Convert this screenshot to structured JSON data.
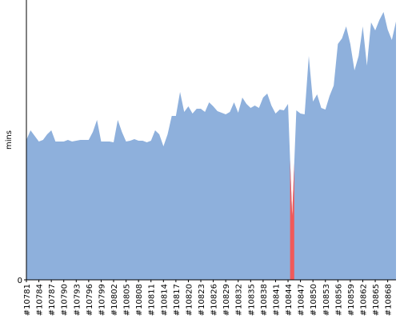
{
  "chart_data": {
    "type": "area",
    "y_label": "mins",
    "categories": [
      "#10781",
      null,
      null,
      "#10784",
      null,
      null,
      "#10787",
      null,
      null,
      "#10790",
      null,
      null,
      "#10793",
      null,
      null,
      "#10796",
      null,
      null,
      "#10799",
      null,
      null,
      "#10802",
      null,
      null,
      "#10805",
      null,
      null,
      "#10808",
      null,
      null,
      "#10811",
      null,
      null,
      "#10814",
      null,
      null,
      "#10817",
      null,
      null,
      "#10820",
      null,
      null,
      "#10823",
      null,
      null,
      "#10826",
      null,
      null,
      "#10829",
      null,
      null,
      "#10832",
      null,
      null,
      "#10835",
      null,
      null,
      "#10838",
      null,
      null,
      "#10841",
      null,
      null,
      "#10844",
      null,
      null,
      "#10847",
      null,
      null,
      "#10850",
      null,
      null,
      "#10853",
      null,
      null,
      "#10856",
      null,
      null,
      "#10859",
      null,
      null,
      "#10862",
      null,
      null,
      "#10865",
      null,
      null,
      "#10868",
      null,
      null
    ],
    "series": [
      {
        "color": "#8eb0dc",
        "values": [
          17.5,
          18.7,
          18,
          17.3,
          17.5,
          18.2,
          18.7,
          17.3,
          17.3,
          17.3,
          17.5,
          17.3,
          17.4,
          17.5,
          17.5,
          17.5,
          18.5,
          20,
          17.3,
          17.3,
          17.3,
          17.2,
          20,
          18.5,
          17.3,
          17.4,
          17.6,
          17.4,
          17.4,
          17.2,
          17.4,
          18.7,
          18.2,
          16.7,
          18.2,
          20.5,
          20.5,
          23.5,
          21,
          21.7,
          20.8,
          21.4,
          21.4,
          21,
          22.2,
          21.7,
          21.1,
          20.9,
          20.7,
          21,
          22.2,
          20.9,
          22.8,
          22,
          21.5,
          21.8,
          21.5,
          22.8,
          23.3,
          21.8,
          20.8,
          21.3,
          21.2,
          22,
          8,
          21.2,
          20.8,
          20.7,
          28,
          22.3,
          23.2,
          21.5,
          21.3,
          23,
          24.3,
          29.5,
          30.2,
          31.7,
          29.5,
          26.2,
          28,
          31.7,
          26.8,
          32.2,
          31.2,
          32.5,
          33.5,
          31.3,
          30,
          32.3
        ]
      },
      {
        "color": "#f05a5a",
        "values": [
          null,
          null,
          null,
          null,
          null,
          null,
          null,
          null,
          null,
          null,
          null,
          null,
          null,
          null,
          null,
          null,
          null,
          null,
          null,
          null,
          null,
          null,
          null,
          null,
          null,
          null,
          null,
          null,
          null,
          null,
          null,
          null,
          null,
          null,
          null,
          null,
          null,
          null,
          null,
          null,
          null,
          null,
          null,
          null,
          null,
          null,
          null,
          null,
          null,
          null,
          null,
          null,
          null,
          null,
          null,
          null,
          null,
          null,
          null,
          null,
          null,
          null,
          null,
          null,
          8,
          null,
          null,
          null,
          null,
          null,
          null,
          null,
          null,
          null,
          null,
          null,
          null,
          null,
          null,
          null,
          null,
          null,
          null,
          null,
          null,
          null,
          null,
          null,
          null,
          null
        ]
      }
    ],
    "ylim": [
      0,
      35
    ],
    "yticks": [
      0
    ]
  }
}
